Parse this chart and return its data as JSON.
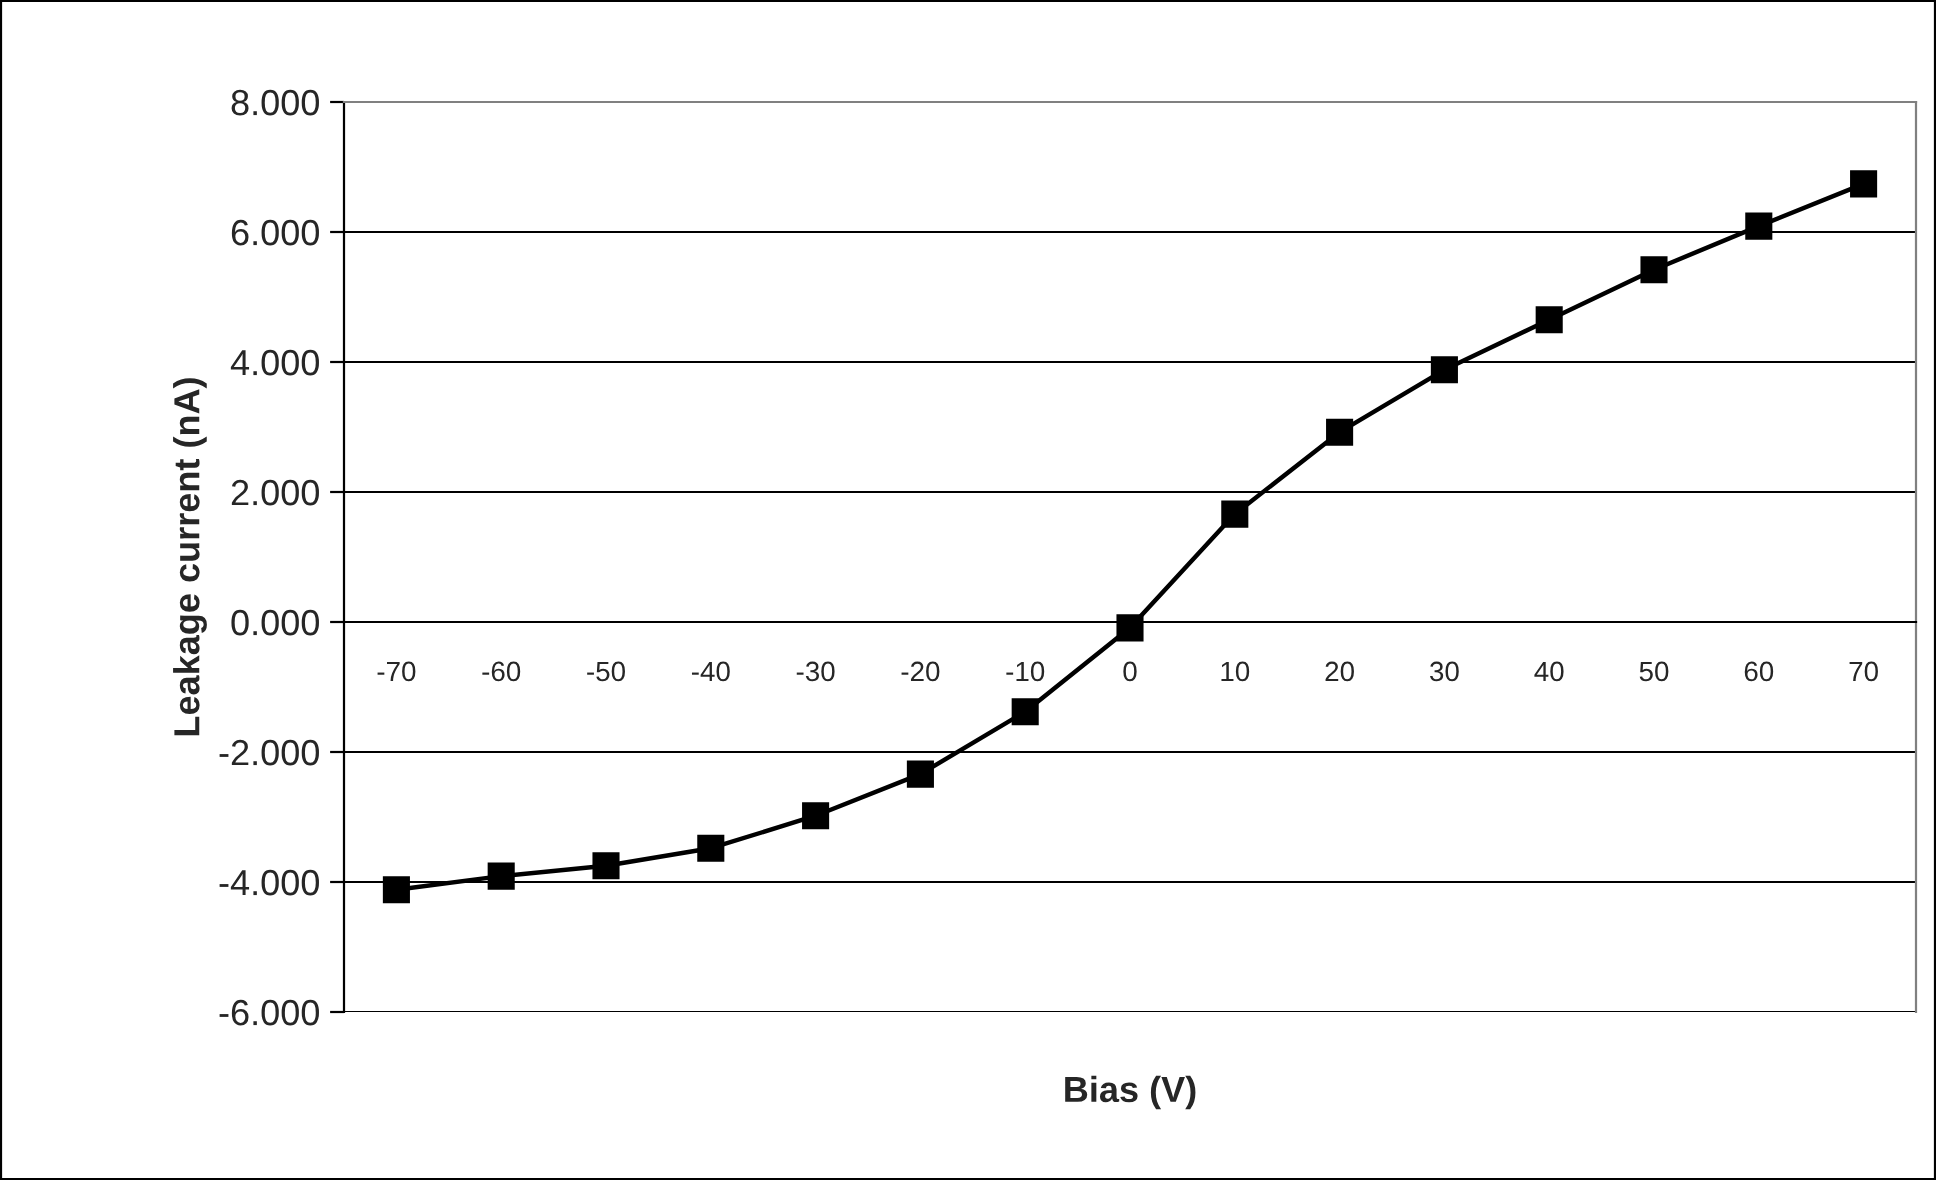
{
  "chart_data": {
    "type": "line",
    "xlabel": "Bias (V)",
    "ylabel": "Leakage current (nA)",
    "categories": [
      "-70",
      "-60",
      "-50",
      "-40",
      "-30",
      "-20",
      "-10",
      "0",
      "10",
      "20",
      "30",
      "40",
      "50",
      "60",
      "70"
    ],
    "series": [
      {
        "color": "#000000",
        "values": [
          -4.12,
          -3.91,
          -3.75,
          -3.48,
          -2.98,
          -2.34,
          -1.38,
          -0.09,
          1.66,
          2.92,
          3.88,
          4.65,
          5.42,
          6.09,
          6.74
        ]
      }
    ],
    "ylim": [
      -6,
      8
    ],
    "yticks": [
      {
        "value": -6,
        "label": "-6.000"
      },
      {
        "value": -4,
        "label": "-4.000"
      },
      {
        "value": -2,
        "label": "-2.000"
      },
      {
        "value": 0,
        "label": "0.000"
      },
      {
        "value": 2,
        "label": "2.000"
      },
      {
        "value": 4,
        "label": "4.000"
      },
      {
        "value": 6,
        "label": "6.000"
      },
      {
        "value": 8,
        "label": "8.000"
      }
    ],
    "grid": "y",
    "marker": "square",
    "line_style": "solid",
    "legend": false
  }
}
